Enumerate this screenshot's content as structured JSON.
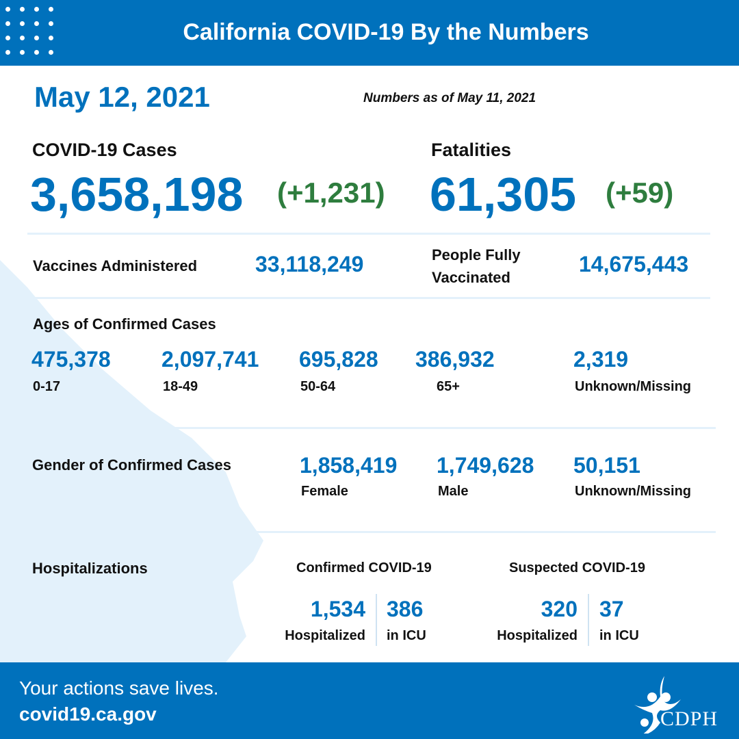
{
  "header": {
    "title": "California COVID-19 By the Numbers"
  },
  "date": "May 12, 2021",
  "as_of": "Numbers as of May 11, 2021",
  "cases": {
    "label": "COVID-19 Cases",
    "value": "3,658,198",
    "change": "(+1,231)"
  },
  "fatalities": {
    "label": "Fatalities",
    "value": "61,305",
    "change": "(+59)"
  },
  "vaccines": {
    "label": "Vaccines Administered",
    "value": "33,118,249"
  },
  "fully_vaccinated": {
    "label_line1": "People Fully",
    "label_line2": "Vaccinated",
    "value": "14,675,443"
  },
  "ages": {
    "title": "Ages of Confirmed Cases",
    "items": [
      {
        "value": "475,378",
        "label": "0-17"
      },
      {
        "value": "2,097,741",
        "label": "18-49"
      },
      {
        "value": "695,828",
        "label": "50-64"
      },
      {
        "value": "386,932",
        "label": "65+"
      },
      {
        "value": "2,319",
        "label": "Unknown/Missing"
      }
    ]
  },
  "gender": {
    "title": "Gender of Confirmed Cases",
    "items": [
      {
        "value": "1,858,419",
        "label": "Female"
      },
      {
        "value": "1,749,628",
        "label": "Male"
      },
      {
        "value": "50,151",
        "label": "Unknown/Missing"
      }
    ]
  },
  "hosp": {
    "title": "Hospitalizations",
    "confirmed": {
      "title": "Confirmed COVID-19",
      "hospitalized": "1,534",
      "hospitalized_label": "Hospitalized",
      "icu": "386",
      "icu_label": "in ICU"
    },
    "suspected": {
      "title": "Suspected COVID-19",
      "hospitalized": "320",
      "hospitalized_label": "Hospitalized",
      "icu": "37",
      "icu_label": "in ICU"
    }
  },
  "footer": {
    "tagline": "Your actions save lives.",
    "url": "covid19.ca.gov",
    "logo_text": "CDPH"
  },
  "colors": {
    "brand": "#0071bc",
    "change": "#2e7d3e",
    "map": "#e3f1fb"
  }
}
